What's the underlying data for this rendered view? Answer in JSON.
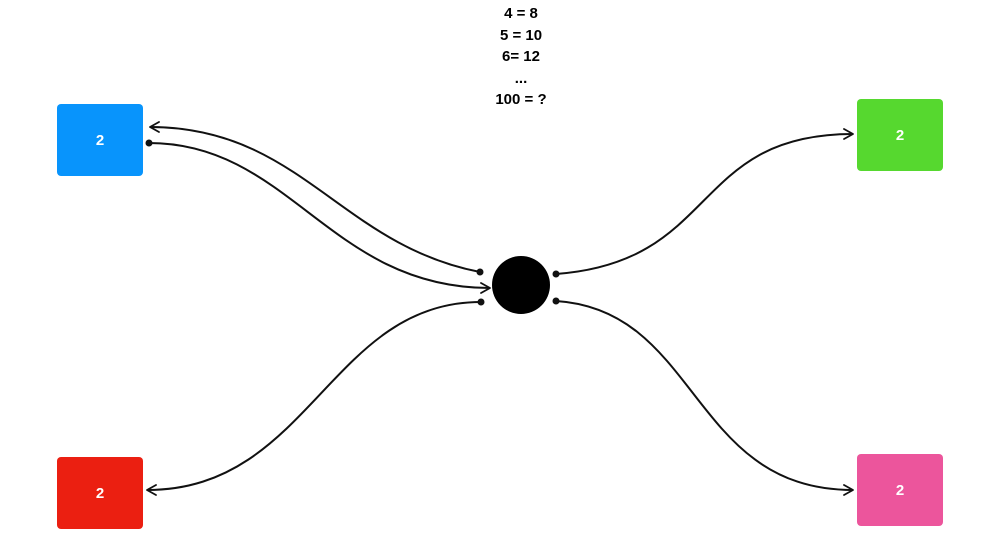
{
  "puzzle": {
    "lines": [
      "4 = 8",
      "5 = 10",
      "6= 12",
      "...",
      "100 = ?"
    ]
  },
  "boxes": {
    "top_left": {
      "label": "2",
      "color": "#0894FC"
    },
    "bottom_left": {
      "label": "2",
      "color": "#EB1F11"
    },
    "top_right": {
      "label": "2",
      "color": "#56D82F"
    },
    "bottom_right": {
      "label": "2",
      "color": "#EC559C"
    }
  },
  "hub": {
    "color": "#000000"
  },
  "connector_color": "#111111"
}
